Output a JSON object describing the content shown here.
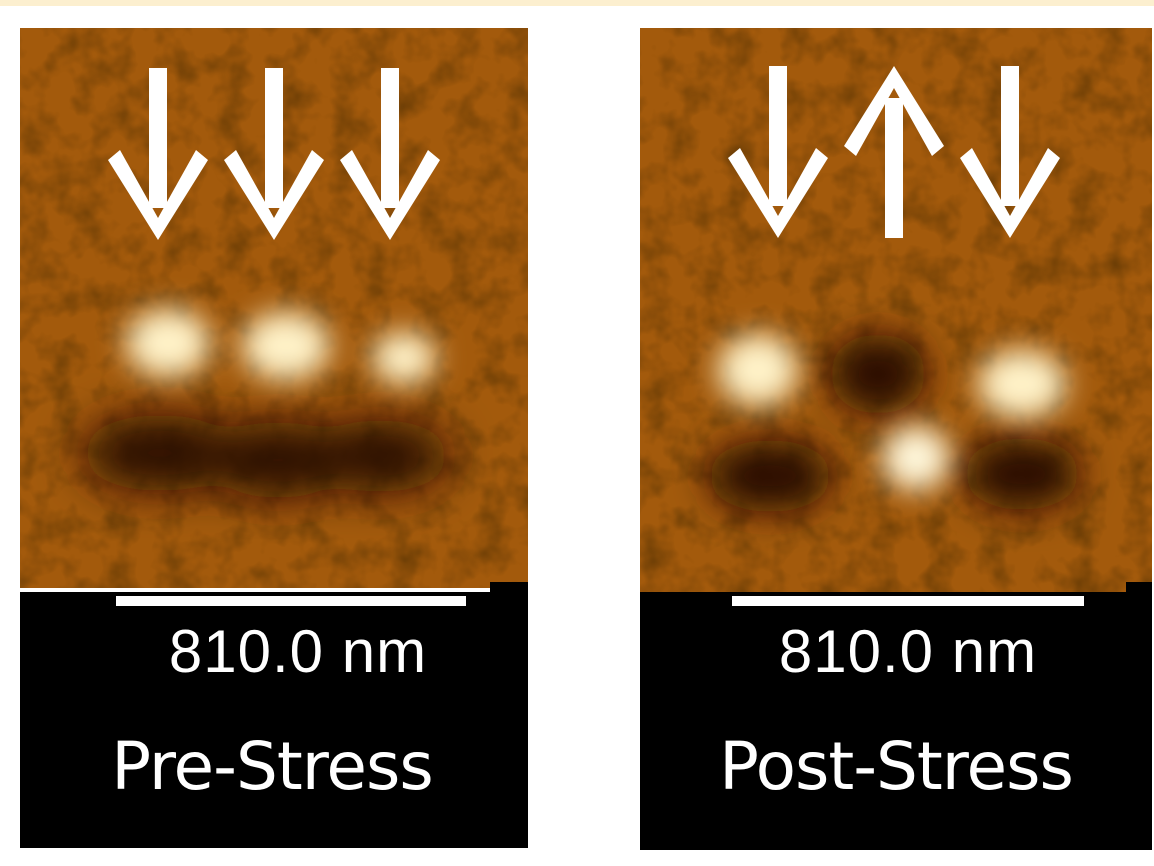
{
  "colors": {
    "background": "#ffffff",
    "top_strip": "#fcefcf",
    "afm_base": "#a35a0c",
    "afm_dark": "#2a0c02",
    "afm_bright": "#fff7da",
    "label_bar": "#000000",
    "arrow": "#ffffff"
  },
  "panels": [
    {
      "id": "pre",
      "scale_label": "810.0 nm",
      "condition_label": "Pre-Stress",
      "arrows": [
        "down",
        "down",
        "down"
      ]
    },
    {
      "id": "post",
      "scale_label": "810.0 nm",
      "condition_label": "Post-Stress",
      "arrows": [
        "down",
        "up",
        "down"
      ]
    }
  ]
}
